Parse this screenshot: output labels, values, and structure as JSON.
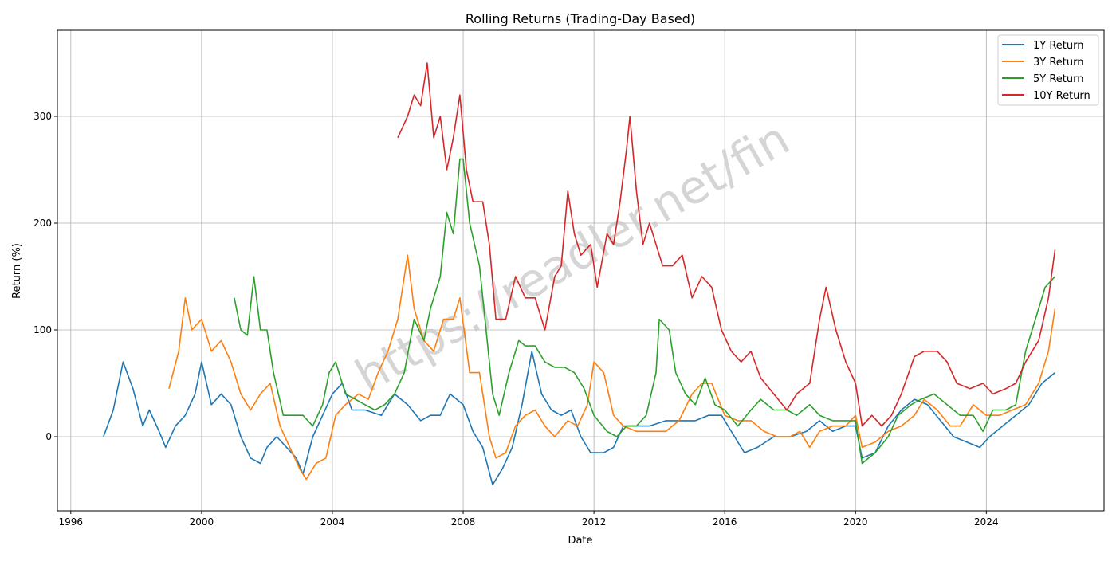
{
  "chart_data": {
    "type": "line",
    "title": "Rolling Returns (Trading-Day Based)",
    "xlabel": "Date",
    "ylabel": "Return (%)",
    "xlim": [
      1995.59,
      2027.6
    ],
    "ylim": [
      -69.4,
      380.6
    ],
    "xticks": [
      1996,
      2000,
      2004,
      2008,
      2012,
      2016,
      2020,
      2024
    ],
    "yticks": [
      0,
      100,
      200,
      300
    ],
    "grid": true,
    "legend_position": "top-right",
    "watermark": "https://readler.net/fin",
    "series": [
      {
        "name": "1Y Return",
        "color": "#1f77b4",
        "x": [
          1997.0,
          1997.3,
          1997.6,
          1997.9,
          1998.2,
          1998.4,
          1998.7,
          1998.9,
          1999.2,
          1999.5,
          1999.8,
          2000.0,
          2000.3,
          2000.6,
          2000.9,
          2001.2,
          2001.5,
          2001.8,
          2002.0,
          2002.3,
          2002.6,
          2002.9,
          2003.1,
          2003.4,
          2003.7,
          2004.0,
          2004.3,
          2004.6,
          2005.0,
          2005.5,
          2005.9,
          2006.3,
          2006.7,
          2007.0,
          2007.3,
          2007.6,
          2008.0,
          2008.3,
          2008.6,
          2008.9,
          2009.2,
          2009.5,
          2009.8,
          2010.1,
          2010.4,
          2010.7,
          2011.0,
          2011.3,
          2011.6,
          2011.9,
          2012.3,
          2012.6,
          2012.9,
          2013.3,
          2013.7,
          2014.2,
          2014.7,
          2015.1,
          2015.5,
          2015.9,
          2016.3,
          2016.6,
          2017.0,
          2017.5,
          2018.0,
          2018.5,
          2018.9,
          2019.3,
          2019.7,
          2020.0,
          2020.2,
          2020.6,
          2021.0,
          2021.4,
          2021.8,
          2022.2,
          2022.6,
          2023.0,
          2023.4,
          2023.8,
          2024.1,
          2024.5,
          2024.9,
          2025.3,
          2025.7,
          2026.1
        ],
        "y": [
          0,
          25,
          70,
          45,
          10,
          25,
          5,
          -10,
          10,
          20,
          40,
          70,
          30,
          40,
          30,
          0,
          -20,
          -25,
          -10,
          0,
          -10,
          -20,
          -35,
          0,
          20,
          40,
          50,
          25,
          25,
          20,
          40,
          30,
          15,
          20,
          20,
          40,
          30,
          5,
          -10,
          -45,
          -30,
          -10,
          30,
          80,
          40,
          25,
          20,
          25,
          0,
          -15,
          -15,
          -10,
          10,
          10,
          10,
          15,
          15,
          15,
          20,
          20,
          0,
          -15,
          -10,
          0,
          0,
          5,
          15,
          5,
          10,
          10,
          -20,
          -15,
          10,
          25,
          35,
          30,
          15,
          0,
          -5,
          -10,
          0,
          10,
          20,
          30,
          50,
          60
        ]
      },
      {
        "name": "3Y Return",
        "color": "#ff7f0e",
        "x": [
          1999.0,
          1999.3,
          1999.5,
          1999.7,
          2000.0,
          2000.3,
          2000.6,
          2000.9,
          2001.2,
          2001.5,
          2001.8,
          2002.1,
          2002.4,
          2002.7,
          2003.0,
          2003.2,
          2003.5,
          2003.8,
          2004.1,
          2004.4,
          2004.8,
          2005.1,
          2005.4,
          2005.7,
          2006.0,
          2006.3,
          2006.5,
          2006.8,
          2007.1,
          2007.4,
          2007.7,
          2007.9,
          2008.2,
          2008.5,
          2008.8,
          2009.0,
          2009.3,
          2009.6,
          2009.9,
          2010.2,
          2010.5,
          2010.8,
          2011.2,
          2011.5,
          2011.8,
          2012.0,
          2012.3,
          2012.6,
          2012.9,
          2013.3,
          2013.7,
          2014.2,
          2014.6,
          2015.0,
          2015.3,
          2015.6,
          2016.0,
          2016.4,
          2016.8,
          2017.2,
          2017.6,
          2018.0,
          2018.3,
          2018.6,
          2018.9,
          2019.3,
          2019.7,
          2020.0,
          2020.2,
          2020.6,
          2021.0,
          2021.4,
          2021.8,
          2022.1,
          2022.5,
          2022.9,
          2023.2,
          2023.6,
          2024.0,
          2024.4,
          2024.8,
          2025.2,
          2025.6,
          2025.9,
          2026.1
        ],
        "y": [
          45,
          80,
          130,
          100,
          110,
          80,
          90,
          70,
          40,
          25,
          40,
          50,
          10,
          -10,
          -30,
          -40,
          -25,
          -20,
          20,
          30,
          40,
          35,
          60,
          80,
          110,
          170,
          120,
          90,
          80,
          110,
          110,
          130,
          60,
          60,
          0,
          -20,
          -15,
          10,
          20,
          25,
          10,
          0,
          15,
          10,
          30,
          70,
          60,
          20,
          10,
          5,
          5,
          5,
          15,
          40,
          50,
          50,
          20,
          15,
          15,
          5,
          0,
          0,
          5,
          -10,
          5,
          10,
          10,
          20,
          -10,
          -5,
          5,
          10,
          20,
          35,
          25,
          10,
          10,
          30,
          20,
          20,
          25,
          30,
          50,
          80,
          120
        ]
      },
      {
        "name": "5Y Return",
        "color": "#2ca02c",
        "x": [
          2001.0,
          2001.2,
          2001.4,
          2001.6,
          2001.8,
          2002.0,
          2002.2,
          2002.5,
          2002.8,
          2003.1,
          2003.4,
          2003.7,
          2003.9,
          2004.1,
          2004.4,
          2004.7,
          2005.0,
          2005.3,
          2005.6,
          2005.9,
          2006.2,
          2006.5,
          2006.8,
          2007.0,
          2007.3,
          2007.5,
          2007.7,
          2007.9,
          2008.0,
          2008.2,
          2008.5,
          2008.7,
          2008.9,
          2009.1,
          2009.4,
          2009.7,
          2009.9,
          2010.2,
          2010.5,
          2010.8,
          2011.1,
          2011.4,
          2011.7,
          2012.0,
          2012.4,
          2012.7,
          2013.0,
          2013.3,
          2013.6,
          2013.9,
          2014.0,
          2014.3,
          2014.5,
          2014.8,
          2015.1,
          2015.4,
          2015.7,
          2016.0,
          2016.4,
          2016.8,
          2017.1,
          2017.5,
          2017.9,
          2018.2,
          2018.6,
          2018.9,
          2019.3,
          2019.7,
          2020.0,
          2020.2,
          2020.6,
          2021.0,
          2021.3,
          2021.7,
          2022.0,
          2022.4,
          2022.8,
          2023.2,
          2023.6,
          2023.9,
          2024.2,
          2024.6,
          2024.9,
          2025.2,
          2025.5,
          2025.8,
          2026.1
        ],
        "y": [
          130,
          100,
          95,
          150,
          100,
          100,
          60,
          20,
          20,
          20,
          10,
          30,
          60,
          70,
          40,
          35,
          30,
          25,
          30,
          40,
          60,
          110,
          90,
          120,
          150,
          210,
          190,
          260,
          260,
          200,
          160,
          100,
          40,
          20,
          60,
          90,
          85,
          85,
          70,
          65,
          65,
          60,
          45,
          20,
          5,
          0,
          10,
          10,
          20,
          60,
          110,
          100,
          60,
          40,
          30,
          55,
          30,
          25,
          10,
          25,
          35,
          25,
          25,
          20,
          30,
          20,
          15,
          15,
          15,
          -25,
          -15,
          0,
          20,
          30,
          35,
          40,
          30,
          20,
          20,
          5,
          25,
          25,
          30,
          80,
          110,
          140,
          150
        ]
      },
      {
        "name": "10Y Return",
        "color": "#d62728",
        "x": [
          2006.0,
          2006.3,
          2006.5,
          2006.7,
          2006.9,
          2007.1,
          2007.3,
          2007.5,
          2007.7,
          2007.9,
          2008.1,
          2008.3,
          2008.6,
          2008.8,
          2009.0,
          2009.3,
          2009.6,
          2009.9,
          2010.2,
          2010.5,
          2010.8,
          2011.0,
          2011.2,
          2011.4,
          2011.6,
          2011.9,
          2012.1,
          2012.4,
          2012.6,
          2012.8,
          2013.0,
          2013.1,
          2013.3,
          2013.5,
          2013.7,
          2013.9,
          2014.1,
          2014.4,
          2014.7,
          2015.0,
          2015.3,
          2015.6,
          2015.9,
          2016.2,
          2016.5,
          2016.8,
          2017.1,
          2017.5,
          2017.9,
          2018.2,
          2018.6,
          2018.9,
          2019.1,
          2019.4,
          2019.7,
          2020.0,
          2020.2,
          2020.5,
          2020.8,
          2021.1,
          2021.4,
          2021.8,
          2022.1,
          2022.5,
          2022.8,
          2023.1,
          2023.5,
          2023.9,
          2024.2,
          2024.6,
          2024.9,
          2025.2,
          2025.6,
          2025.9,
          2026.1
        ],
        "y": [
          280,
          300,
          320,
          310,
          350,
          280,
          300,
          250,
          280,
          320,
          250,
          220,
          220,
          180,
          110,
          110,
          150,
          130,
          130,
          100,
          150,
          160,
          230,
          190,
          170,
          180,
          140,
          190,
          180,
          220,
          270,
          300,
          230,
          180,
          200,
          180,
          160,
          160,
          170,
          130,
          150,
          140,
          100,
          80,
          70,
          80,
          55,
          40,
          25,
          40,
          50,
          110,
          140,
          100,
          70,
          50,
          10,
          20,
          10,
          20,
          40,
          75,
          80,
          80,
          70,
          50,
          45,
          50,
          40,
          45,
          50,
          70,
          90,
          130,
          175
        ]
      }
    ]
  }
}
